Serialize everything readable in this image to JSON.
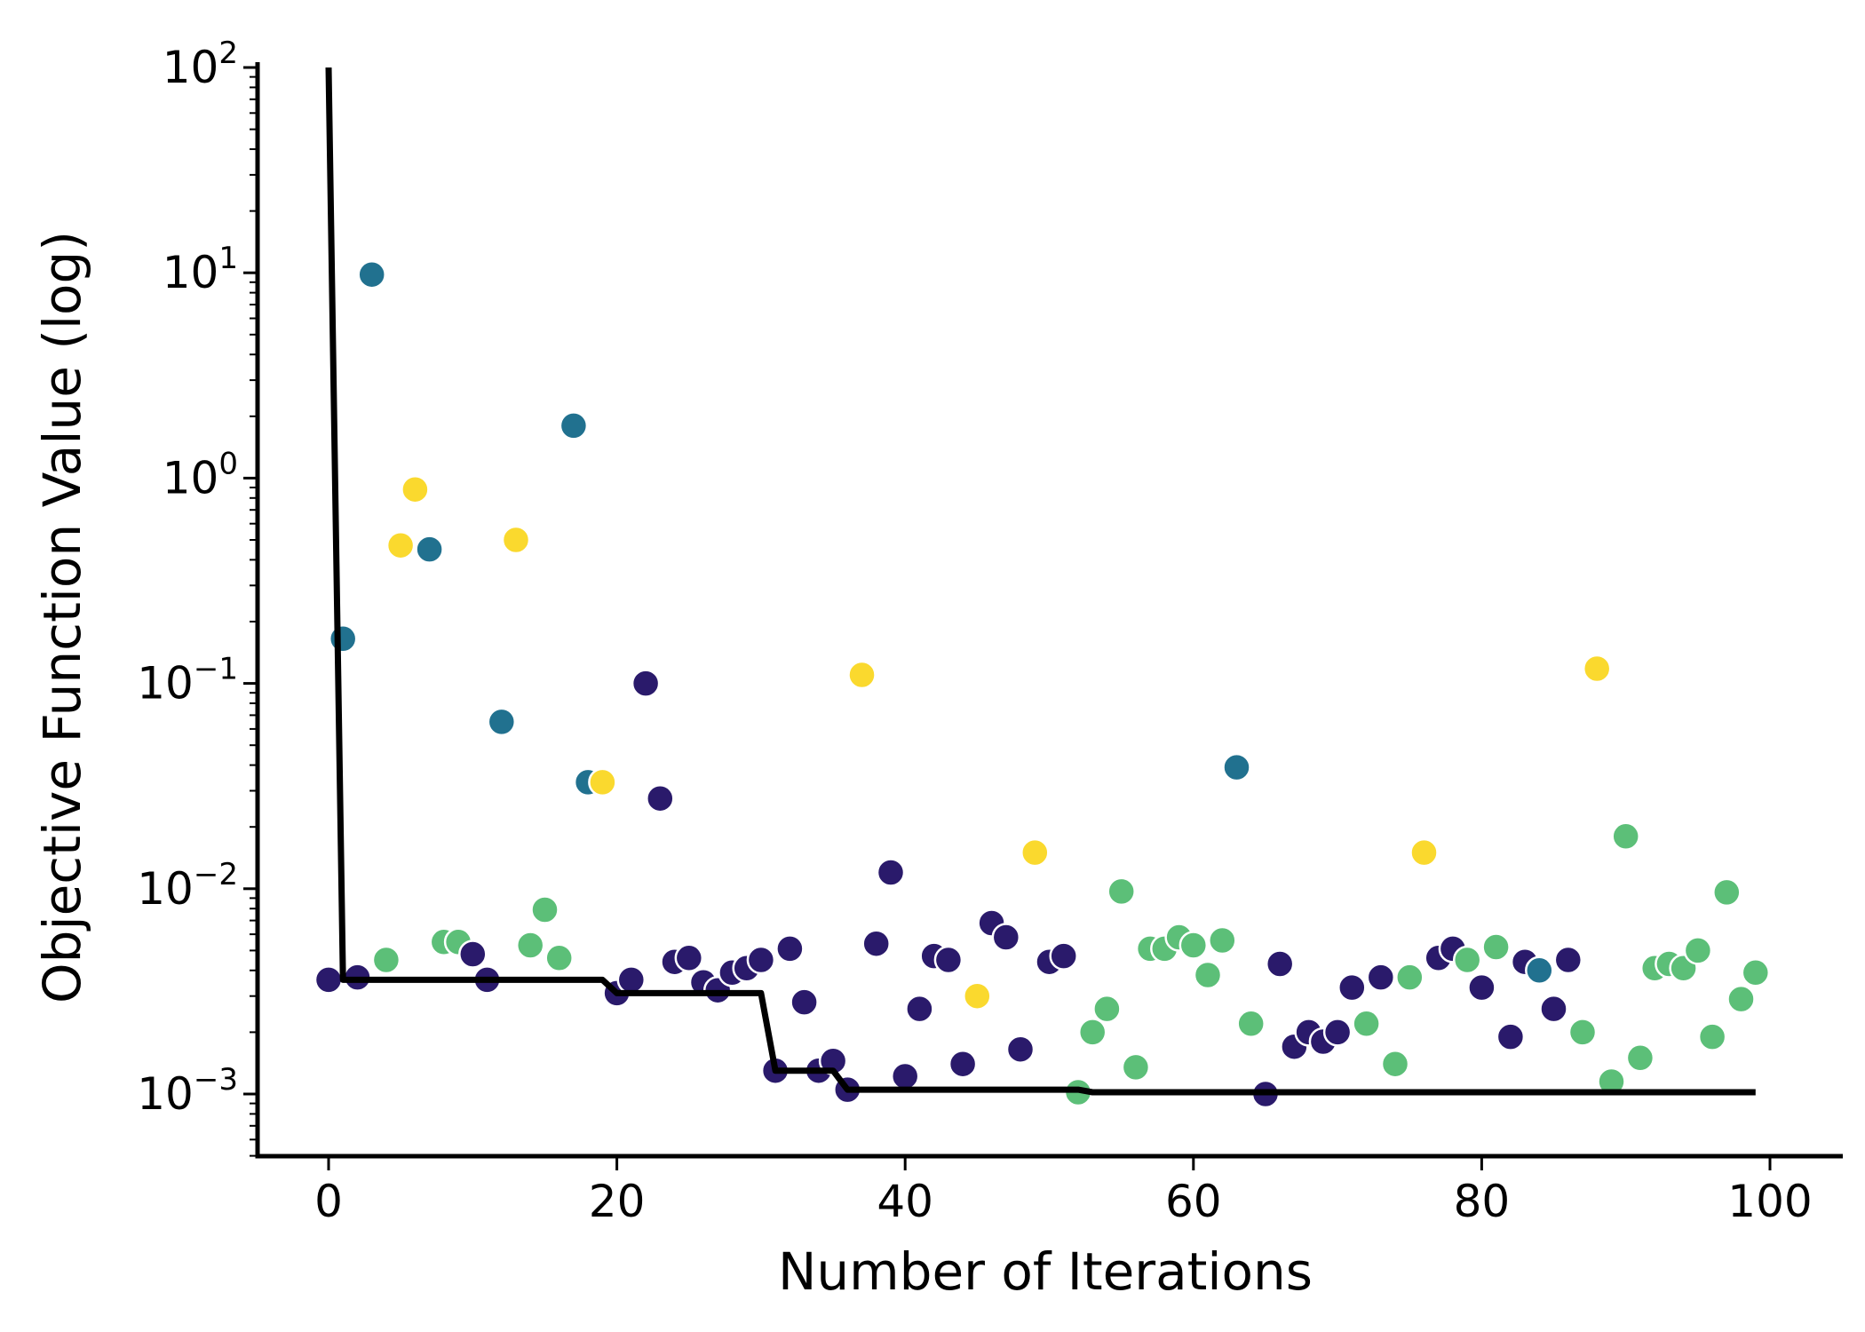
{
  "chart_data": {
    "type": "scatter",
    "title": "",
    "xlabel": "Number of Iterations",
    "ylabel": "Objective Function Value (log)",
    "yscale": "log",
    "xlim": [
      -5,
      104
    ],
    "ylim_exp": [
      -3.3,
      2
    ],
    "x_ticks": [
      0,
      20,
      40,
      60,
      80,
      100
    ],
    "y_ticks": [
      {
        "base": "10",
        "exp": "−3",
        "value": 0.001
      },
      {
        "base": "10",
        "exp": "−2",
        "value": 0.01
      },
      {
        "base": "10",
        "exp": "−1",
        "value": 0.1
      },
      {
        "base": "10",
        "exp": "0",
        "value": 1
      },
      {
        "base": "10",
        "exp": "1",
        "value": 10
      },
      {
        "base": "10",
        "exp": "2",
        "value": 100
      }
    ],
    "grid": false,
    "legend": "none",
    "colors": {
      "c0": "#2a1a6b",
      "c1": "#21718f",
      "c2": "#5cbf78",
      "c3": "#fad92e",
      "line": "#000000"
    },
    "points": [
      [
        0,
        0.0036,
        0
      ],
      [
        1,
        0.165,
        1
      ],
      [
        2,
        0.0037,
        0
      ],
      [
        3,
        9.8,
        1
      ],
      [
        4,
        0.0045,
        2
      ],
      [
        5,
        0.47,
        3
      ],
      [
        6,
        0.88,
        3
      ],
      [
        7,
        0.45,
        1
      ],
      [
        8,
        0.0055,
        2
      ],
      [
        9,
        0.0055,
        2
      ],
      [
        10,
        0.0048,
        0
      ],
      [
        11,
        0.0036,
        0
      ],
      [
        12,
        0.065,
        1
      ],
      [
        13,
        0.5,
        3
      ],
      [
        14,
        0.0053,
        2
      ],
      [
        15,
        0.0079,
        2
      ],
      [
        16,
        0.0046,
        2
      ],
      [
        17,
        1.8,
        1
      ],
      [
        18,
        0.033,
        1
      ],
      [
        19,
        0.033,
        3
      ],
      [
        20,
        0.0031,
        0
      ],
      [
        21,
        0.0036,
        0
      ],
      [
        22,
        0.1,
        0
      ],
      [
        23,
        0.0275,
        0
      ],
      [
        24,
        0.0044,
        0
      ],
      [
        25,
        0.0046,
        0
      ],
      [
        26,
        0.0035,
        0
      ],
      [
        27,
        0.0032,
        0
      ],
      [
        28,
        0.0039,
        0
      ],
      [
        29,
        0.0041,
        0
      ],
      [
        30,
        0.0045,
        0
      ],
      [
        31,
        0.0013,
        0
      ],
      [
        32,
        0.0051,
        0
      ],
      [
        33,
        0.0028,
        0
      ],
      [
        34,
        0.0013,
        0
      ],
      [
        35,
        0.00145,
        0
      ],
      [
        36,
        0.00105,
        0
      ],
      [
        37,
        0.11,
        3
      ],
      [
        38,
        0.0054,
        0
      ],
      [
        39,
        0.012,
        0
      ],
      [
        40,
        0.00122,
        0
      ],
      [
        41,
        0.0026,
        0
      ],
      [
        42,
        0.0047,
        0
      ],
      [
        43,
        0.0045,
        0
      ],
      [
        44,
        0.0014,
        0
      ],
      [
        45,
        0.003,
        3
      ],
      [
        46,
        0.0068,
        0
      ],
      [
        47,
        0.0058,
        0
      ],
      [
        48,
        0.00165,
        0
      ],
      [
        49,
        0.015,
        3
      ],
      [
        50,
        0.0044,
        0
      ],
      [
        51,
        0.0047,
        0
      ],
      [
        52,
        0.00102,
        2
      ],
      [
        53,
        0.002,
        2
      ],
      [
        54,
        0.0026,
        2
      ],
      [
        55,
        0.0097,
        2
      ],
      [
        56,
        0.00135,
        2
      ],
      [
        57,
        0.0051,
        2
      ],
      [
        58,
        0.0051,
        2
      ],
      [
        59,
        0.0058,
        2
      ],
      [
        60,
        0.0053,
        2
      ],
      [
        61,
        0.0038,
        2
      ],
      [
        62,
        0.0056,
        2
      ],
      [
        63,
        0.039,
        1
      ],
      [
        64,
        0.0022,
        2
      ],
      [
        65,
        0.001,
        0
      ],
      [
        66,
        0.0043,
        0
      ],
      [
        67,
        0.0017,
        0
      ],
      [
        68,
        0.002,
        0
      ],
      [
        69,
        0.0018,
        0
      ],
      [
        70,
        0.002,
        0
      ],
      [
        71,
        0.0033,
        0
      ],
      [
        72,
        0.0022,
        2
      ],
      [
        73,
        0.0037,
        0
      ],
      [
        74,
        0.0014,
        2
      ],
      [
        75,
        0.0037,
        2
      ],
      [
        76,
        0.015,
        3
      ],
      [
        77,
        0.0046,
        0
      ],
      [
        78,
        0.0051,
        0
      ],
      [
        79,
        0.0045,
        2
      ],
      [
        80,
        0.0033,
        0
      ],
      [
        81,
        0.0052,
        2
      ],
      [
        82,
        0.0019,
        0
      ],
      [
        83,
        0.0044,
        0
      ],
      [
        84,
        0.004,
        1
      ],
      [
        85,
        0.0026,
        0
      ],
      [
        86,
        0.0045,
        0
      ],
      [
        87,
        0.002,
        2
      ],
      [
        88,
        0.118,
        3
      ],
      [
        89,
        0.00115,
        2
      ],
      [
        90,
        0.018,
        2
      ],
      [
        91,
        0.0015,
        2
      ],
      [
        92,
        0.0041,
        2
      ],
      [
        93,
        0.0043,
        2
      ],
      [
        94,
        0.0041,
        2
      ],
      [
        95,
        0.005,
        2
      ],
      [
        96,
        0.0019,
        2
      ],
      [
        97,
        0.0096,
        2
      ],
      [
        98,
        0.0029,
        2
      ],
      [
        99,
        0.0039,
        2
      ]
    ],
    "best_line": [
      [
        0,
        100
      ],
      [
        1,
        0.0036
      ],
      [
        19,
        0.0036
      ],
      [
        20,
        0.0031
      ],
      [
        30,
        0.0031
      ],
      [
        31,
        0.0013
      ],
      [
        35,
        0.0013
      ],
      [
        36,
        0.00105
      ],
      [
        52,
        0.00105
      ],
      [
        53,
        0.00102
      ],
      [
        99,
        0.00102
      ]
    ]
  }
}
